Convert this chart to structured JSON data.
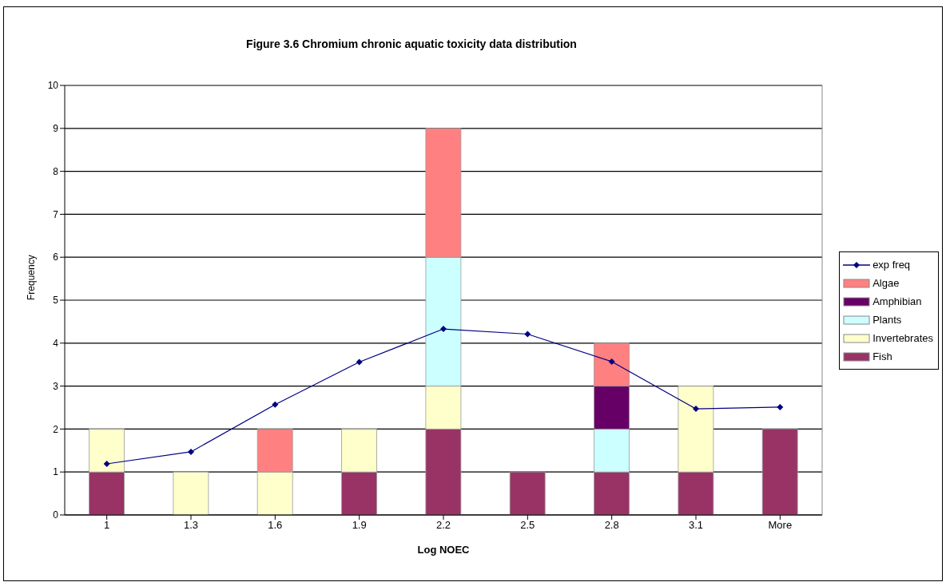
{
  "chart_data": {
    "type": "bar",
    "title": "Figure 3.6 Chromium chronic aquatic toxicity data distribution",
    "xlabel": "Log NOEC",
    "ylabel": "Frequency",
    "categories": [
      "1",
      "1.3",
      "1.6",
      "1.9",
      "2.2",
      "2.5",
      "2.8",
      "3.1",
      "More"
    ],
    "stacked": true,
    "series": [
      {
        "name": "Fish",
        "color": "#993366",
        "values": [
          1,
          0,
          0,
          1,
          2,
          1,
          1,
          1,
          2
        ]
      },
      {
        "name": "Invertebrates",
        "color": "#ffffcc",
        "values": [
          1,
          1,
          1,
          1,
          1,
          0,
          0,
          2,
          0
        ]
      },
      {
        "name": "Plants",
        "color": "#ccffff",
        "values": [
          0,
          0,
          0,
          0,
          3,
          0,
          1,
          0,
          0
        ]
      },
      {
        "name": "Amphibian",
        "color": "#660066",
        "values": [
          0,
          0,
          0,
          0,
          0,
          0,
          1,
          0,
          0
        ]
      },
      {
        "name": "Algae",
        "color": "#ff8080",
        "values": [
          0,
          0,
          1,
          0,
          3,
          0,
          1,
          0,
          0
        ]
      },
      {
        "name": "exp freq",
        "type": "line",
        "color": "#000080",
        "marker": "diamond",
        "values": [
          1.19,
          1.47,
          2.57,
          3.56,
          4.33,
          4.21,
          3.57,
          2.47,
          2.51
        ]
      }
    ],
    "ylim": [
      0,
      10
    ],
    "yticks": [
      0,
      1,
      2,
      3,
      4,
      5,
      6,
      7,
      8,
      9,
      10
    ],
    "grid": "y",
    "legend": "right"
  }
}
